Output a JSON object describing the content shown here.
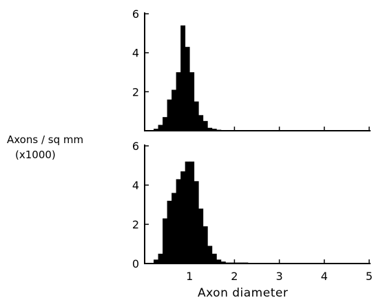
{
  "chart_data": [
    {
      "type": "bar",
      "panel": "top",
      "x": [
        0.25,
        0.35,
        0.45,
        0.55,
        0.65,
        0.75,
        0.85,
        0.95,
        1.05,
        1.15,
        1.25,
        1.35,
        1.45,
        1.55,
        1.65
      ],
      "values": [
        0.1,
        0.3,
        0.7,
        1.6,
        2.1,
        3.0,
        5.4,
        4.3,
        3.0,
        1.5,
        0.8,
        0.5,
        0.15,
        0.1,
        0.05
      ],
      "xlim": [
        0,
        5
      ],
      "ylim": [
        0,
        6
      ],
      "yticks": [
        "6",
        "4",
        "2"
      ]
    },
    {
      "type": "bar",
      "panel": "bottom",
      "x": [
        0.25,
        0.35,
        0.45,
        0.55,
        0.65,
        0.75,
        0.85,
        0.95,
        1.05,
        1.15,
        1.25,
        1.35,
        1.45,
        1.55,
        1.65,
        1.75,
        1.85,
        1.95,
        2.05,
        2.15,
        2.25
      ],
      "values": [
        0.2,
        0.5,
        2.3,
        3.2,
        3.6,
        4.3,
        4.7,
        5.2,
        5.2,
        4.2,
        2.8,
        1.9,
        0.9,
        0.5,
        0.2,
        0.1,
        0.05,
        0.05,
        0.05,
        0.05,
        0.05
      ],
      "xlim": [
        0,
        5
      ],
      "ylim": [
        0,
        6
      ],
      "yticks": [
        "6",
        "4",
        "2",
        "0"
      ],
      "xticks": [
        "1",
        "2",
        "3",
        "4",
        "5"
      ]
    }
  ],
  "ylabel_line1": "Axons / sq mm",
  "ylabel_line2": "(x1000)",
  "xlabel": "Axon diameter"
}
